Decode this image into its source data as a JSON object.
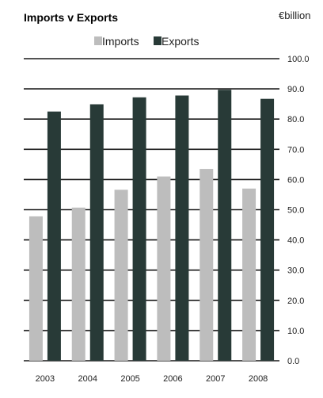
{
  "chart_data": {
    "type": "bar",
    "title": "Imports v Exports",
    "unit": "€billion",
    "categories": [
      "2003",
      "2004",
      "2005",
      "2006",
      "2007",
      "2008"
    ],
    "series": [
      {
        "name": "Imports",
        "color": "#bdbdbd",
        "values": [
          47.8,
          50.7,
          56.6,
          61.0,
          63.5,
          57.0
        ]
      },
      {
        "name": "Exports",
        "color": "#283a37",
        "values": [
          82.5,
          84.9,
          87.2,
          87.8,
          89.7,
          86.7
        ]
      }
    ],
    "ylim": [
      0,
      100
    ],
    "yticks": [
      "0.0",
      "10.0",
      "20.0",
      "30.0",
      "40.0",
      "50.0",
      "60.0",
      "70.0",
      "80.0",
      "90.0",
      "100.0"
    ],
    "grid": true,
    "legend": "top-center"
  }
}
